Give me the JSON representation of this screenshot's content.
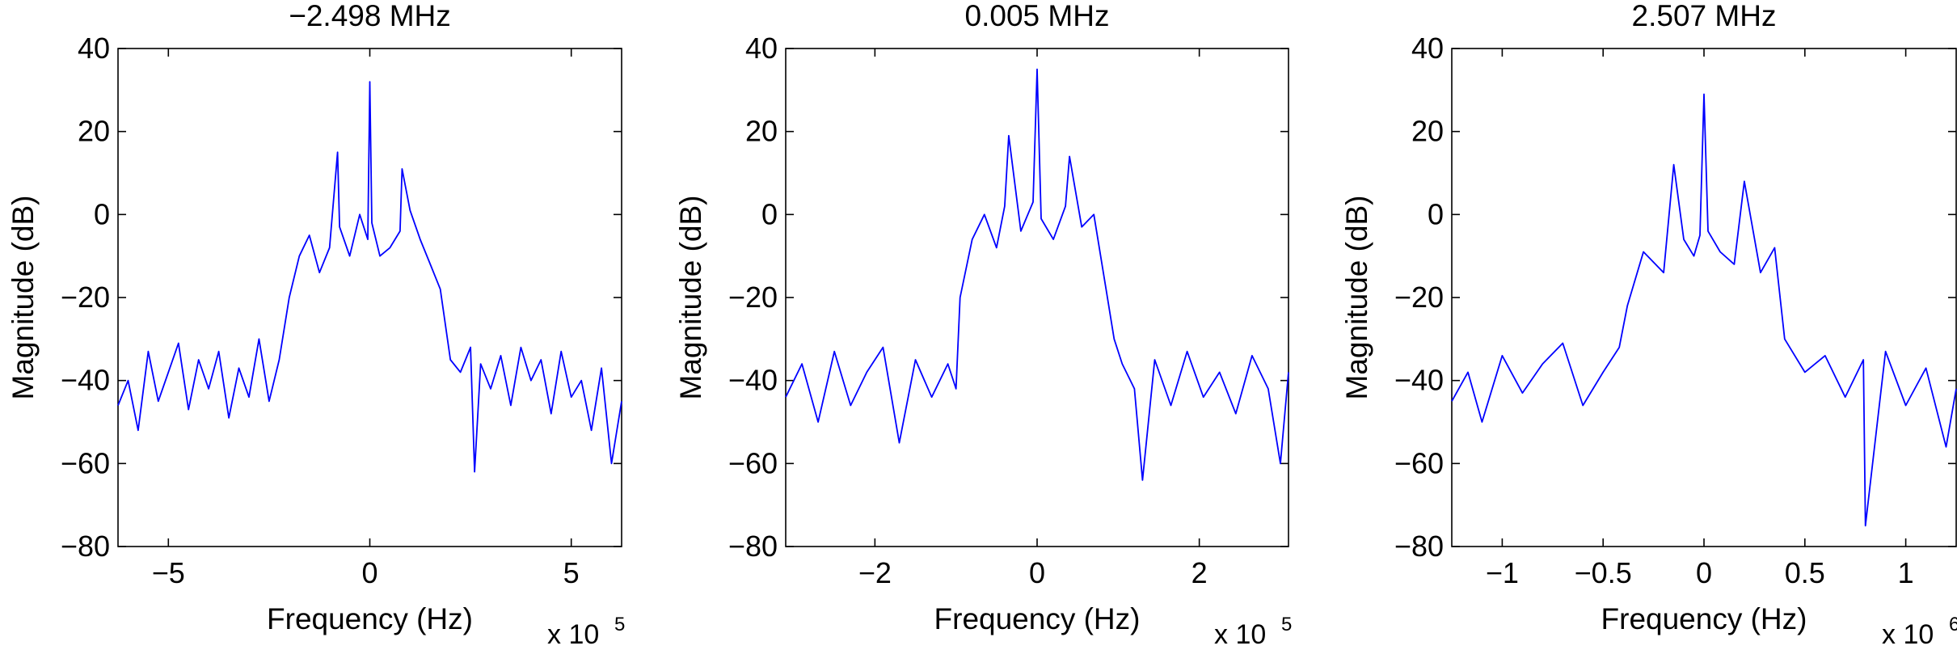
{
  "colors": {
    "line": "#0000ff",
    "axes": "#000000",
    "background": "#ffffff"
  },
  "chart_data": [
    {
      "type": "line",
      "title": "−2.498 MHz",
      "xlabel": "Frequency (Hz)",
      "ylabel": "Magnitude (dB)",
      "x_exponent_base": "x 10",
      "x_exponent_power": "5",
      "xlim": [
        -6.25,
        6.25
      ],
      "ylim": [
        -80,
        40
      ],
      "xticks": [
        -5,
        0,
        5
      ],
      "xtick_labels": [
        "−5",
        "0",
        "5"
      ],
      "yticks": [
        -80,
        -60,
        -40,
        -20,
        0,
        20,
        40
      ],
      "ytick_labels": [
        "−80",
        "−60",
        "−40",
        "−20",
        "0",
        "20",
        "40"
      ],
      "grid": false,
      "series": [
        {
          "x": [
            -6.25,
            -6.0,
            -5.75,
            -5.5,
            -5.25,
            -5.0,
            -4.75,
            -4.5,
            -4.25,
            -4.0,
            -3.75,
            -3.5,
            -3.25,
            -3.0,
            -2.75,
            -2.5,
            -2.25,
            -2.0,
            -1.75,
            -1.5,
            -1.25,
            -1.0,
            -0.8,
            -0.75,
            -0.5,
            -0.25,
            -0.05,
            0.0,
            0.05,
            0.25,
            0.5,
            0.75,
            0.8,
            1.0,
            1.25,
            1.5,
            1.75,
            2.0,
            2.25,
            2.5,
            2.6,
            2.75,
            3.0,
            3.25,
            3.5,
            3.75,
            4.0,
            4.25,
            4.5,
            4.75,
            5.0,
            5.25,
            5.5,
            5.75,
            6.0,
            6.25
          ],
          "y": [
            -46,
            -40,
            -52,
            -33,
            -45,
            -38,
            -31,
            -47,
            -35,
            -42,
            -33,
            -49,
            -37,
            -44,
            -30,
            -45,
            -35,
            -20,
            -10,
            -5,
            -14,
            -8,
            15,
            -3,
            -10,
            0,
            -6,
            32,
            -2,
            -10,
            -8,
            -4,
            11,
            1,
            -6,
            -12,
            -18,
            -35,
            -38,
            -32,
            -62,
            -36,
            -42,
            -34,
            -46,
            -32,
            -40,
            -35,
            -48,
            -33,
            -44,
            -40,
            -52,
            -37,
            -60,
            -45
          ]
        }
      ]
    },
    {
      "type": "line",
      "title": "0.005 MHz",
      "xlabel": "Frequency (Hz)",
      "ylabel": "Magnitude (dB)",
      "x_exponent_base": "x 10",
      "x_exponent_power": "5",
      "xlim": [
        -3.1,
        3.1
      ],
      "ylim": [
        -80,
        40
      ],
      "xticks": [
        -2,
        0,
        2
      ],
      "xtick_labels": [
        "−2",
        "0",
        "2"
      ],
      "yticks": [
        -80,
        -60,
        -40,
        -20,
        0,
        20,
        40
      ],
      "ytick_labels": [
        "−80",
        "−60",
        "−40",
        "−20",
        "0",
        "20",
        "40"
      ],
      "grid": false,
      "series": [
        {
          "x": [
            -3.1,
            -2.9,
            -2.7,
            -2.5,
            -2.3,
            -2.1,
            -1.9,
            -1.7,
            -1.5,
            -1.3,
            -1.1,
            -1.0,
            -0.95,
            -0.8,
            -0.65,
            -0.5,
            -0.4,
            -0.35,
            -0.2,
            -0.05,
            0.0,
            0.05,
            0.2,
            0.35,
            0.4,
            0.55,
            0.7,
            0.85,
            0.95,
            1.05,
            1.2,
            1.3,
            1.45,
            1.65,
            1.85,
            2.05,
            2.25,
            2.45,
            2.65,
            2.85,
            3.0,
            3.1
          ],
          "y": [
            -44,
            -36,
            -50,
            -33,
            -46,
            -38,
            -32,
            -55,
            -35,
            -44,
            -36,
            -42,
            -20,
            -6,
            0,
            -8,
            2,
            19,
            -4,
            3,
            35,
            -1,
            -6,
            2,
            14,
            -3,
            0,
            -18,
            -30,
            -36,
            -42,
            -64,
            -35,
            -46,
            -33,
            -44,
            -38,
            -48,
            -34,
            -42,
            -60,
            -38
          ]
        }
      ]
    },
    {
      "type": "line",
      "title": "2.507 MHz",
      "xlabel": "Frequency (Hz)",
      "ylabel": "Magnitude (dB)",
      "x_exponent_base": "x 10",
      "x_exponent_power": "6",
      "xlim": [
        -1.25,
        1.25
      ],
      "ylim": [
        -80,
        40
      ],
      "xticks": [
        -1,
        -0.5,
        0,
        0.5,
        1
      ],
      "xtick_labels": [
        "−1",
        "−0.5",
        "0",
        "0.5",
        "1"
      ],
      "yticks": [
        -80,
        -60,
        -40,
        -20,
        0,
        20,
        40
      ],
      "ytick_labels": [
        "−80",
        "−60",
        "−40",
        "−20",
        "0",
        "20",
        "40"
      ],
      "grid": false,
      "series": [
        {
          "x": [
            -1.25,
            -1.17,
            -1.1,
            -1.0,
            -0.9,
            -0.8,
            -0.7,
            -0.6,
            -0.5,
            -0.42,
            -0.38,
            -0.3,
            -0.2,
            -0.15,
            -0.1,
            -0.05,
            -0.02,
            0.0,
            0.02,
            0.08,
            0.15,
            0.2,
            0.28,
            0.35,
            0.4,
            0.5,
            0.6,
            0.7,
            0.79,
            0.8,
            0.9,
            1.0,
            1.1,
            1.2,
            1.25
          ],
          "y": [
            -45,
            -38,
            -50,
            -34,
            -43,
            -36,
            -31,
            -46,
            -38,
            -32,
            -22,
            -9,
            -14,
            12,
            -6,
            -10,
            -5,
            29,
            -4,
            -9,
            -12,
            8,
            -14,
            -8,
            -30,
            -38,
            -34,
            -44,
            -35,
            -75,
            -33,
            -46,
            -37,
            -56,
            -42
          ]
        }
      ]
    }
  ]
}
